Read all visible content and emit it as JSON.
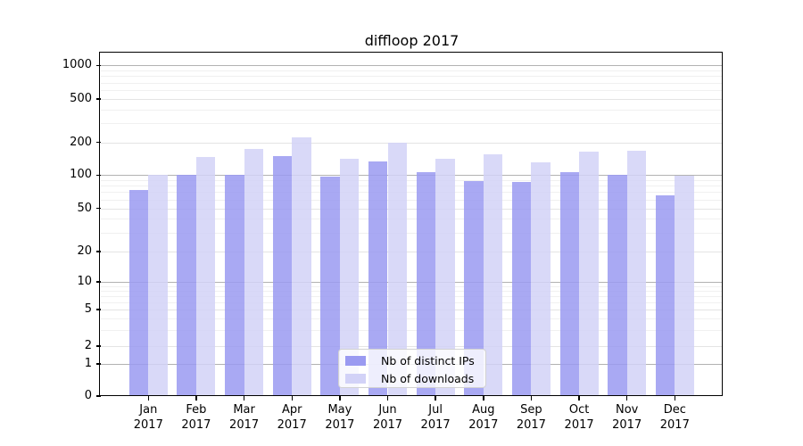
{
  "chart_data": {
    "type": "bar",
    "title": "diffloop 2017",
    "categories": [
      "Jan",
      "Feb",
      "Mar",
      "Apr",
      "May",
      "Jun",
      "Jul",
      "Aug",
      "Sep",
      "Oct",
      "Nov",
      "Dec"
    ],
    "year": "2017",
    "series": [
      {
        "name": "Nb of distinct IPs",
        "color": "#9a9af1",
        "values": [
          74,
          101,
          101,
          149,
          97,
          134,
          107,
          89,
          86,
          107,
          101,
          66
        ]
      },
      {
        "name": "Nb of downloads",
        "color": "#d2d2f7",
        "values": [
          100,
          148,
          173,
          222,
          142,
          197,
          142,
          155,
          130,
          165,
          168,
          98
        ]
      }
    ],
    "y_ticks": [
      0,
      1,
      2,
      5,
      10,
      20,
      50,
      100,
      200,
      500,
      1000
    ],
    "y_scale": "symlog",
    "ylim": [
      0,
      1300
    ],
    "grid": true,
    "legend_position": "lower center"
  },
  "legend": {
    "ips_label": "Nb of distinct IPs",
    "downloads_label": "Nb of downloads"
  },
  "colors": {
    "ips_bar": "#9a9af1",
    "downloads_bar": "#d2d2f7",
    "grid_major": "#b2b2b2",
    "grid_minor": "#f0f0f0"
  }
}
